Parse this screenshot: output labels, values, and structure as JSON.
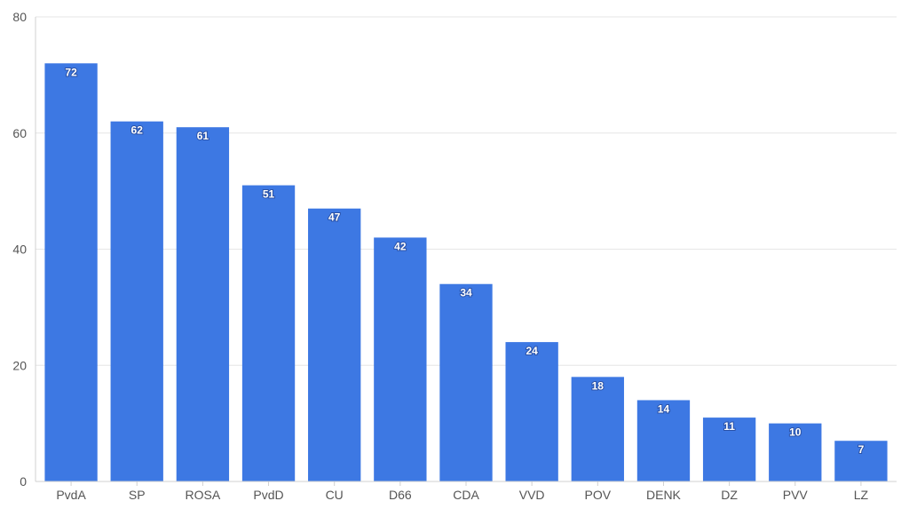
{
  "chart_data": {
    "type": "bar",
    "title": "",
    "xlabel": "",
    "ylabel": "",
    "categories": [
      "PvdA",
      "SP",
      "ROSA",
      "PvdD",
      "CU",
      "D66",
      "CDA",
      "VVD",
      "POV",
      "DENK",
      "DZ",
      "PVV",
      "LZ"
    ],
    "values": [
      72,
      62,
      61,
      51,
      47,
      42,
      34,
      24,
      18,
      14,
      11,
      10,
      7
    ],
    "ylim": [
      0,
      80
    ],
    "yticks": [
      0,
      20,
      40,
      60,
      80
    ],
    "grid": true,
    "legend": "none",
    "data_labels": true,
    "bar_color": "#3d78e3",
    "grid_color": "#e6e6e6",
    "axis_color": "#d0d0d0",
    "label_color": "#555555"
  }
}
